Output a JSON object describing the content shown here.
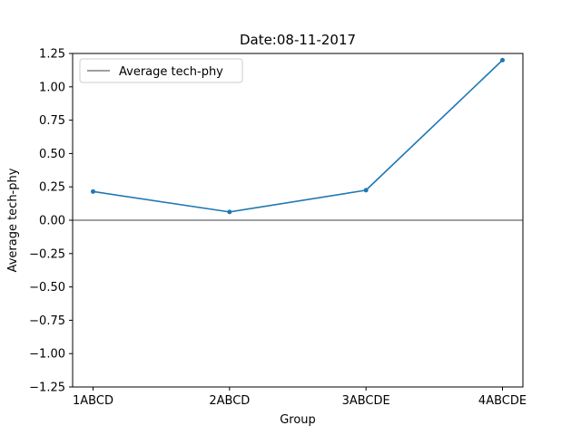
{
  "chart_data": {
    "type": "line",
    "title": "Date:08-11-2017",
    "xlabel": "Group",
    "ylabel": "Average tech-phy",
    "categories": [
      "1ABCD",
      "2ABCD",
      "3ABCDE",
      "4ABCDE"
    ],
    "series": [
      {
        "values": [
          0.215,
          0.062,
          0.225,
          1.2
        ],
        "color": "#1f77b4"
      }
    ],
    "ylim": [
      -1.25,
      1.25
    ],
    "yticks": [
      -1.25,
      -1.0,
      -0.75,
      -0.5,
      -0.25,
      0.0,
      0.25,
      0.5,
      0.75,
      1.0,
      1.25
    ],
    "ytick_labels": [
      "−1.25",
      "−1.00",
      "−0.75",
      "−0.50",
      "−0.25",
      "0.00",
      "0.25",
      "0.50",
      "0.75",
      "1.00",
      "1.25"
    ],
    "reference_line": {
      "y": 0,
      "color": "#000000"
    },
    "legend": {
      "label": "Average tech-phy",
      "placement": "top-left"
    },
    "grid": false
  }
}
